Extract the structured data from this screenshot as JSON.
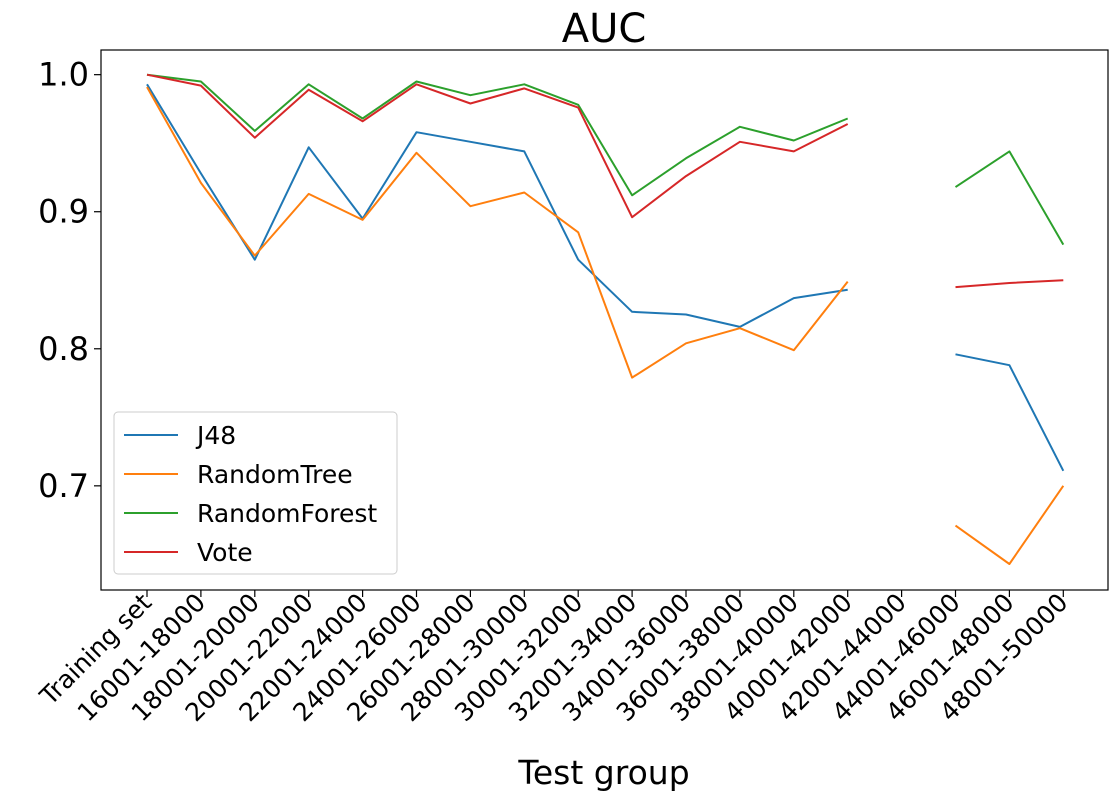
{
  "chart_data": {
    "type": "line",
    "title": "AUC",
    "xlabel": "Test group",
    "ylabel": "",
    "categories": [
      "Training set",
      "16001-18000",
      "18001-20000",
      "20001-22000",
      "22001-24000",
      "24001-26000",
      "26001-28000",
      "28001-30000",
      "30001-32000",
      "32001-34000",
      "34001-36000",
      "36001-38000",
      "38001-40000",
      "40001-42000",
      "42001-44000",
      "44001-46000",
      "46001-48000",
      "48001-50000"
    ],
    "ylim": [
      0.624,
      1.018
    ],
    "yticks": [
      0.7,
      0.8,
      0.9,
      1.0
    ],
    "ytick_labels": [
      "0.7",
      "0.8",
      "0.9",
      "1.0"
    ],
    "grid": false,
    "legend_position": "lower-left",
    "series": [
      {
        "name": "J48",
        "color": "#1f77b4",
        "values": [
          0.993,
          0.928,
          0.865,
          0.947,
          0.895,
          0.958,
          0.951,
          0.944,
          0.865,
          0.827,
          0.825,
          0.816,
          0.837,
          0.843,
          null,
          0.796,
          0.788,
          0.711
        ]
      },
      {
        "name": "RandomTree",
        "color": "#ff7f0e",
        "values": [
          0.991,
          0.921,
          0.868,
          0.913,
          0.894,
          0.943,
          0.904,
          0.914,
          0.885,
          0.779,
          0.804,
          0.815,
          0.799,
          0.849,
          null,
          0.671,
          0.643,
          0.7
        ]
      },
      {
        "name": "RandomForest",
        "color": "#2ca02c",
        "values": [
          1.0,
          0.995,
          0.959,
          0.993,
          0.968,
          0.995,
          0.985,
          0.993,
          0.978,
          0.912,
          0.939,
          0.962,
          0.952,
          0.968,
          null,
          0.918,
          0.944,
          0.876
        ]
      },
      {
        "name": "Vote",
        "color": "#d62728",
        "values": [
          1.0,
          0.992,
          0.954,
          0.989,
          0.966,
          0.993,
          0.979,
          0.99,
          0.976,
          0.896,
          0.926,
          0.951,
          0.944,
          0.964,
          null,
          0.845,
          0.848,
          0.85
        ]
      }
    ]
  }
}
